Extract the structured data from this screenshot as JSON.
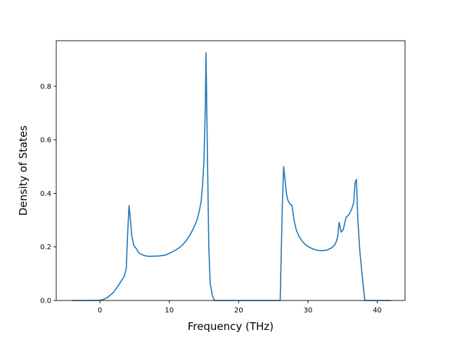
{
  "chart_data": {
    "type": "line",
    "title": "",
    "xlabel": "Frequency (THz)",
    "ylabel": "Density of States",
    "xlim": [
      -6.3,
      44.0
    ],
    "ylim": [
      0.0,
      0.97
    ],
    "xticks": [
      0,
      10,
      20,
      30,
      40
    ],
    "xtick_labels": [
      "0",
      "10",
      "20",
      "30",
      "40"
    ],
    "yticks": [
      0.0,
      0.2,
      0.4,
      0.6,
      0.8
    ],
    "ytick_labels": [
      "0.0",
      "0.2",
      "0.4",
      "0.6",
      "0.8"
    ],
    "grid": false,
    "legend": "none",
    "series": [
      {
        "color": "#1f77b4",
        "x": [
          -4.0,
          -2.0,
          0.0,
          0.5,
          1.0,
          1.5,
          2.0,
          2.5,
          3.0,
          3.5,
          3.8,
          4.0,
          4.2,
          4.4,
          4.6,
          4.9,
          5.2,
          5.6,
          6.0,
          6.5,
          7.0,
          7.5,
          8.0,
          8.5,
          9.0,
          9.5,
          10.0,
          10.5,
          11.0,
          11.5,
          12.0,
          12.5,
          13.0,
          13.5,
          14.0,
          14.3,
          14.6,
          14.8,
          15.0,
          15.2,
          15.3,
          15.5,
          15.7,
          15.9,
          16.2,
          16.5,
          20.0,
          26.0,
          26.3,
          26.5,
          26.7,
          26.9,
          27.1,
          27.4,
          27.7,
          28.0,
          28.3,
          28.7,
          29.2,
          29.8,
          30.5,
          31.2,
          32.0,
          32.7,
          33.3,
          33.8,
          34.1,
          34.3,
          34.5,
          34.8,
          35.1,
          35.5,
          35.9,
          36.3,
          36.6,
          36.8,
          37.0,
          37.2,
          37.5,
          37.8,
          38.2,
          40.0,
          42.0
        ],
        "y": [
          0.0,
          0.0,
          0.001,
          0.004,
          0.01,
          0.02,
          0.032,
          0.05,
          0.07,
          0.09,
          0.12,
          0.25,
          0.355,
          0.3,
          0.24,
          0.205,
          0.195,
          0.178,
          0.172,
          0.167,
          0.165,
          0.165,
          0.166,
          0.166,
          0.168,
          0.17,
          0.176,
          0.182,
          0.19,
          0.198,
          0.21,
          0.225,
          0.245,
          0.27,
          0.3,
          0.33,
          0.37,
          0.43,
          0.52,
          0.72,
          0.925,
          0.55,
          0.2,
          0.065,
          0.02,
          0.0,
          0.0,
          0.0,
          0.35,
          0.5,
          0.45,
          0.4,
          0.375,
          0.36,
          0.355,
          0.3,
          0.265,
          0.24,
          0.22,
          0.205,
          0.195,
          0.188,
          0.186,
          0.188,
          0.195,
          0.205,
          0.22,
          0.24,
          0.292,
          0.255,
          0.265,
          0.31,
          0.32,
          0.34,
          0.365,
          0.44,
          0.452,
          0.3,
          0.18,
          0.1,
          0.0,
          0.0,
          0.0
        ]
      }
    ]
  }
}
